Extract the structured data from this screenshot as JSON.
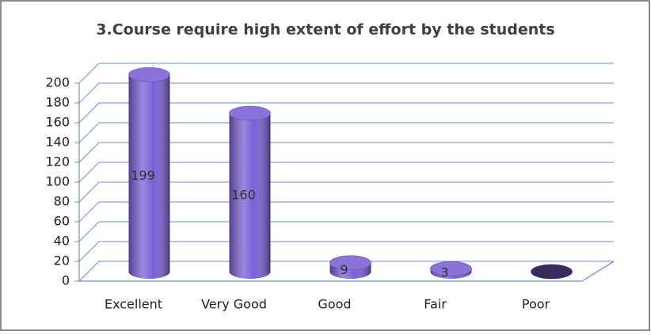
{
  "chart_data": {
    "type": "bar",
    "title": "3.Course require high extent of effort by the students",
    "categories": [
      "Excellent",
      "Very Good",
      "Good",
      "Fair",
      "Poor"
    ],
    "values": [
      199,
      160,
      9,
      3,
      0
    ],
    "color": "#7b5fd4",
    "ylim": [
      0,
      200
    ],
    "yticks": [
      0,
      20,
      40,
      60,
      80,
      100,
      120,
      140,
      160,
      180,
      200
    ],
    "grid": true
  }
}
